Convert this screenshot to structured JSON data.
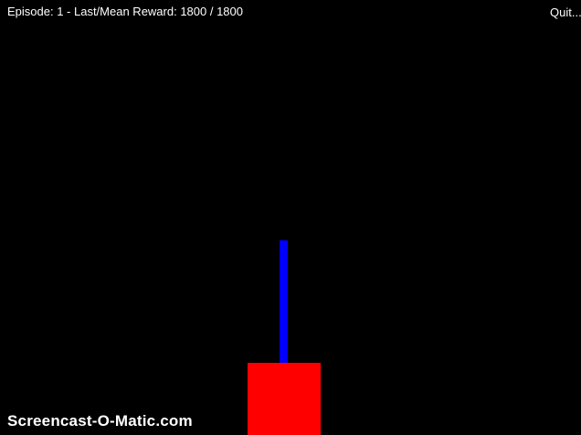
{
  "hud": {
    "status": "Episode: 1 - Last/Mean Reward: 1800 / 1800",
    "quit_label": "Quit..."
  },
  "scene": {
    "pole_color": "#0000ff",
    "cart_color": "#ff0000",
    "background_color": "#000000"
  },
  "watermark": {
    "text": "Screencast-O-Matic.com"
  }
}
